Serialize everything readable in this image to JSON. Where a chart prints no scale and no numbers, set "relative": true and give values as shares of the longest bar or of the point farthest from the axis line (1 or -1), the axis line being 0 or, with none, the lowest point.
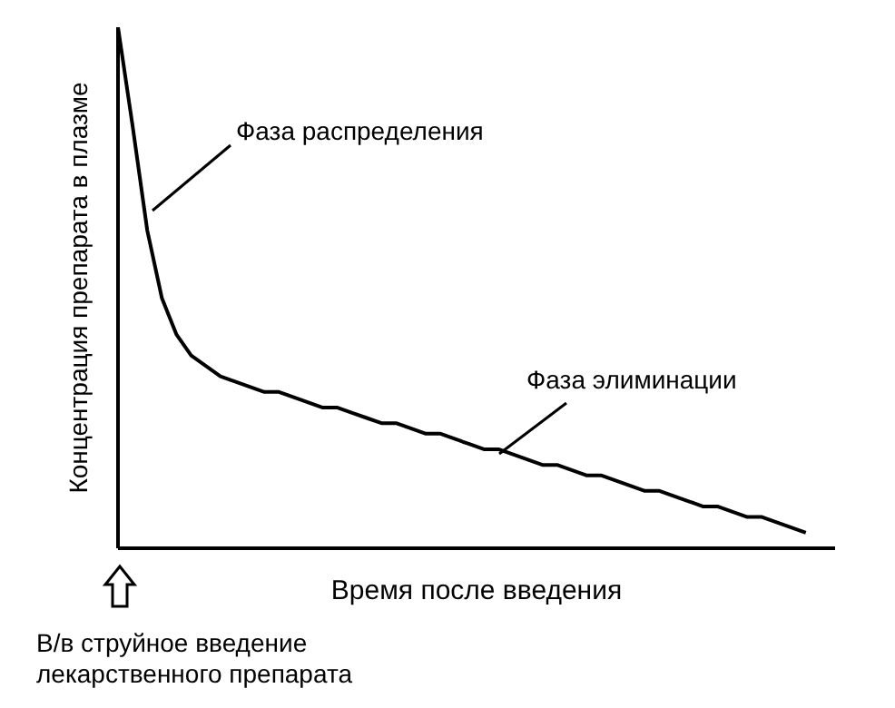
{
  "chart_data": {
    "type": "line",
    "relative": true,
    "xlabel": "Время после введения",
    "ylabel": "Концентрация препарата в плазме",
    "categories": [
      null,
      null,
      null,
      null,
      null,
      null,
      null,
      null,
      null,
      null,
      null,
      null,
      null,
      null,
      null,
      null,
      null,
      null,
      null,
      null,
      null,
      null,
      null,
      null,
      null,
      null,
      null,
      null,
      null,
      null,
      null,
      null,
      null,
      null,
      null,
      null,
      null,
      null,
      null,
      null,
      null,
      null,
      null,
      null,
      null,
      null,
      null,
      null,
      null,
      null
    ],
    "series": [
      {
        "color": "#000000",
        "values": [
          1.0,
          0.81,
          0.61,
          0.48,
          0.41,
          0.37,
          0.35,
          0.33,
          0.32,
          0.31,
          0.3,
          0.3,
          0.29,
          0.28,
          0.27,
          0.27,
          0.26,
          0.25,
          0.24,
          0.24,
          0.23,
          0.22,
          0.22,
          0.21,
          0.2,
          0.19,
          0.19,
          0.18,
          0.17,
          0.16,
          0.16,
          0.15,
          0.14,
          0.14,
          0.13,
          0.12,
          0.11,
          0.11,
          0.1,
          0.09,
          0.08,
          0.08,
          0.07,
          0.06,
          0.06,
          0.05,
          0.04,
          0.03,
          null,
          null
        ]
      }
    ],
    "annotations": [
      "Фаза распределения",
      "Фаза элиминации",
      "В/в струйное введение лекарственного препарата"
    ]
  }
}
